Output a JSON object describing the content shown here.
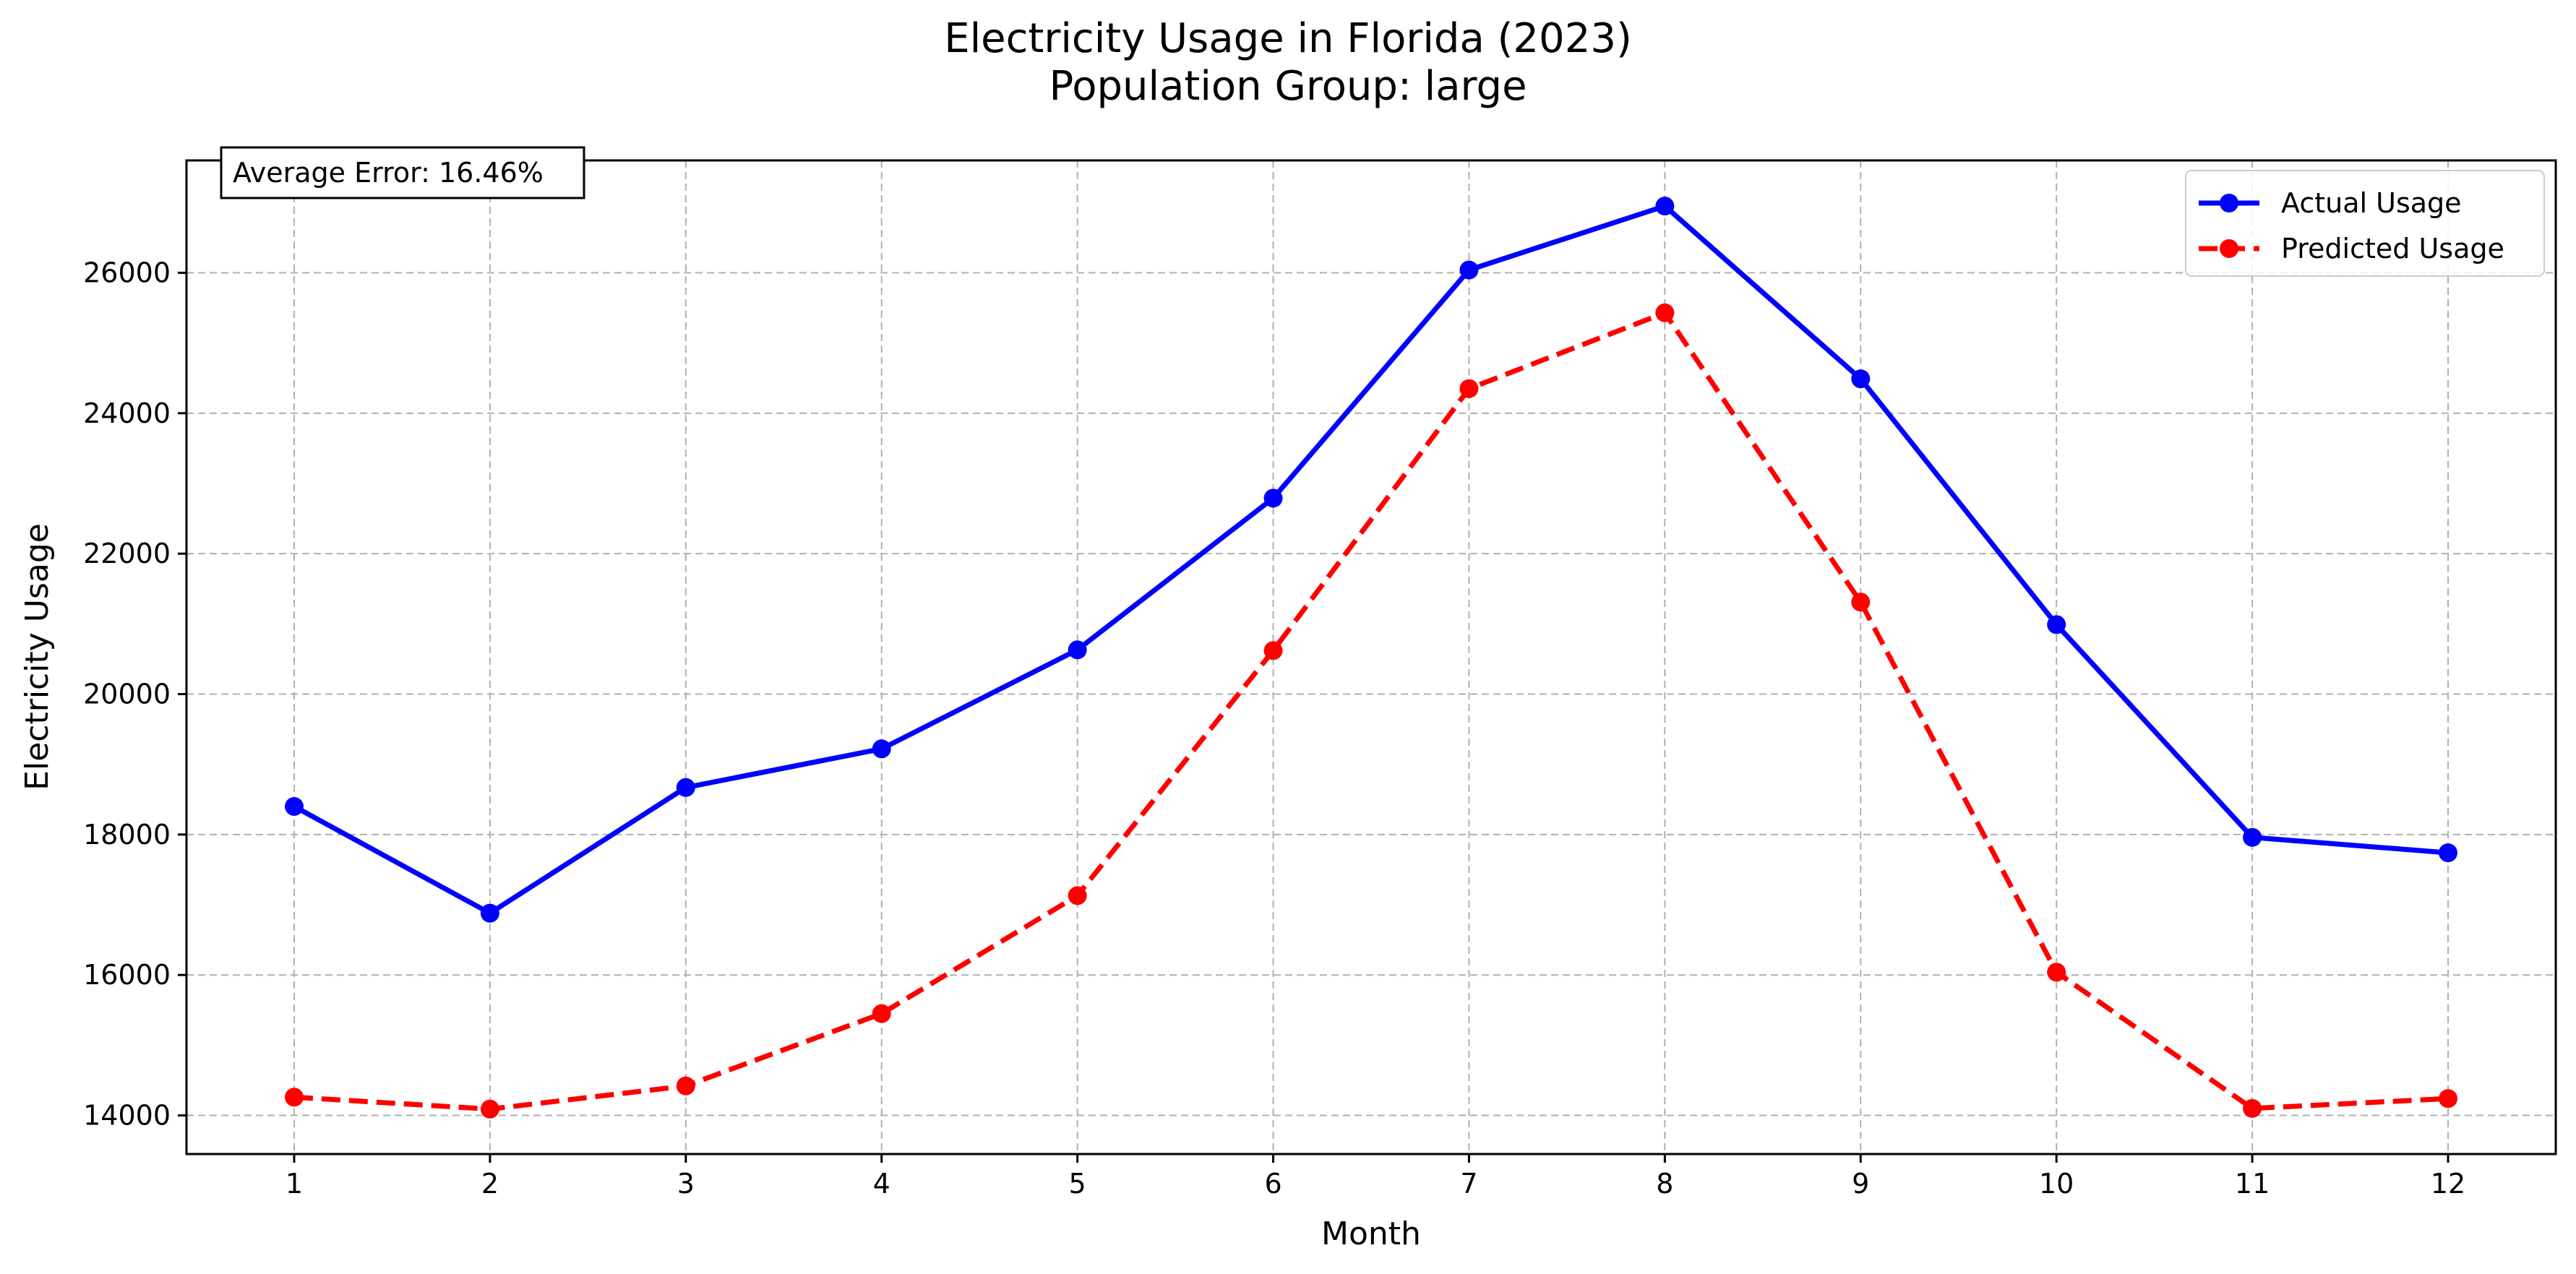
{
  "chart_data": {
    "type": "line",
    "title": "Electricity Usage in Florida (2023)",
    "subtitle": "Population Group: large",
    "xlabel": "Month",
    "ylabel": "Electricity Usage",
    "x": [
      1,
      2,
      3,
      4,
      5,
      6,
      7,
      8,
      9,
      10,
      11,
      12
    ],
    "x_tick_labels": [
      "1",
      "2",
      "3",
      "4",
      "5",
      "6",
      "7",
      "8",
      "9",
      "10",
      "11",
      "12"
    ],
    "xlim": [
      0.45,
      12.55
    ],
    "ylim": [
      13450,
      27600
    ],
    "y_ticks": [
      14000,
      16000,
      18000,
      20000,
      22000,
      24000,
      26000
    ],
    "y_tick_labels": [
      "14000",
      "16000",
      "18000",
      "20000",
      "22000",
      "24000",
      "26000"
    ],
    "grid": true,
    "legend_position": "top-right",
    "series": [
      {
        "name": "Actual Usage",
        "color": "#0000ff",
        "line_style": "solid",
        "marker": "circle",
        "values": [
          18400,
          16880,
          18670,
          19220,
          20630,
          22790,
          26040,
          26950,
          24490,
          20990,
          17960,
          17740
        ]
      },
      {
        "name": "Predicted Usage",
        "color": "#ff0000",
        "line_style": "dashed",
        "marker": "circle",
        "values": [
          14260,
          14090,
          14420,
          15450,
          17130,
          20620,
          24350,
          25430,
          21310,
          16040,
          14100,
          14240
        ]
      }
    ],
    "annotation": "Average Error: 16.46%"
  }
}
